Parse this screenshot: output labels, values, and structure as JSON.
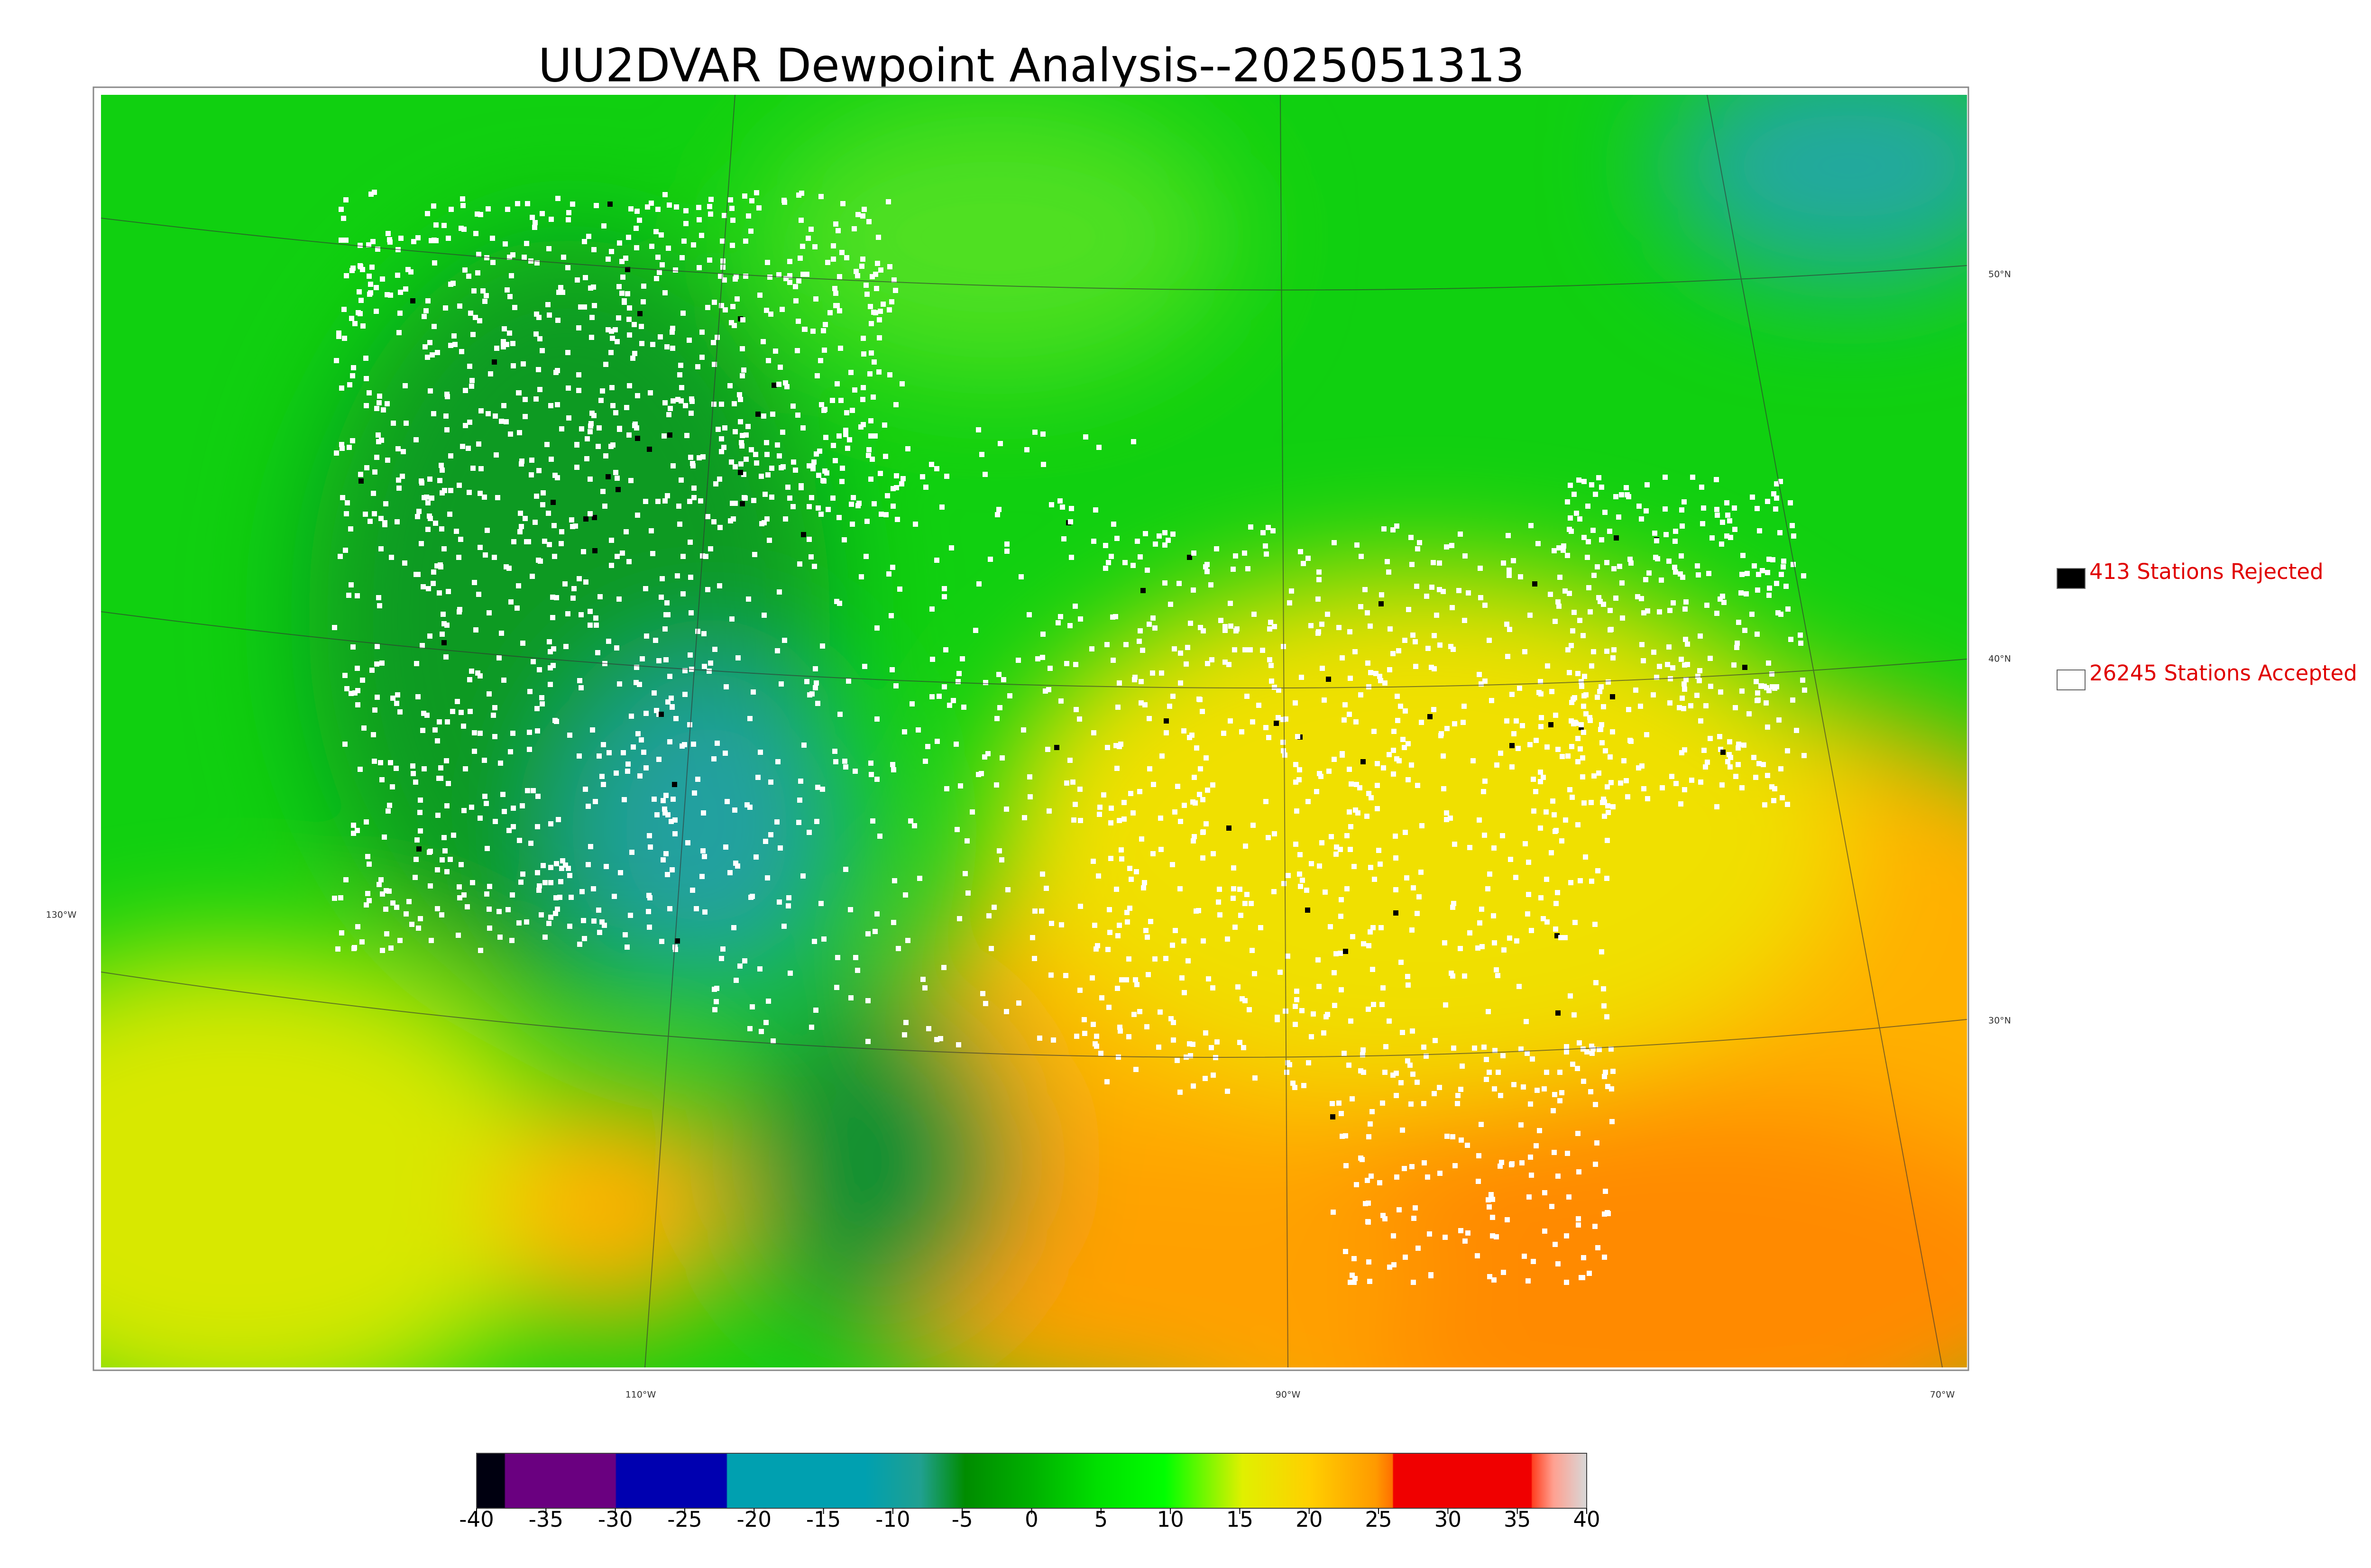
{
  "title": "UU2DVAR Dewpoint Analysis--2025051313",
  "legend": [
    {
      "label": "413 Stations Rejected",
      "color": "#000000"
    },
    {
      "label": "26245 Stations Accepted",
      "color": "#ffffff"
    }
  ],
  "latitude_labels": [
    "50°N",
    "40°N",
    "30°N"
  ],
  "longitude_labels": [
    "130°W",
    "110°W",
    "90°W",
    "70°W"
  ],
  "colorbar": {
    "lim": [
      -40,
      40
    ],
    "ticks": [
      -40,
      -35,
      -30,
      -25,
      -20,
      -15,
      -10,
      -5,
      0,
      5,
      10,
      15,
      20,
      25,
      30,
      35,
      40
    ]
  }
}
